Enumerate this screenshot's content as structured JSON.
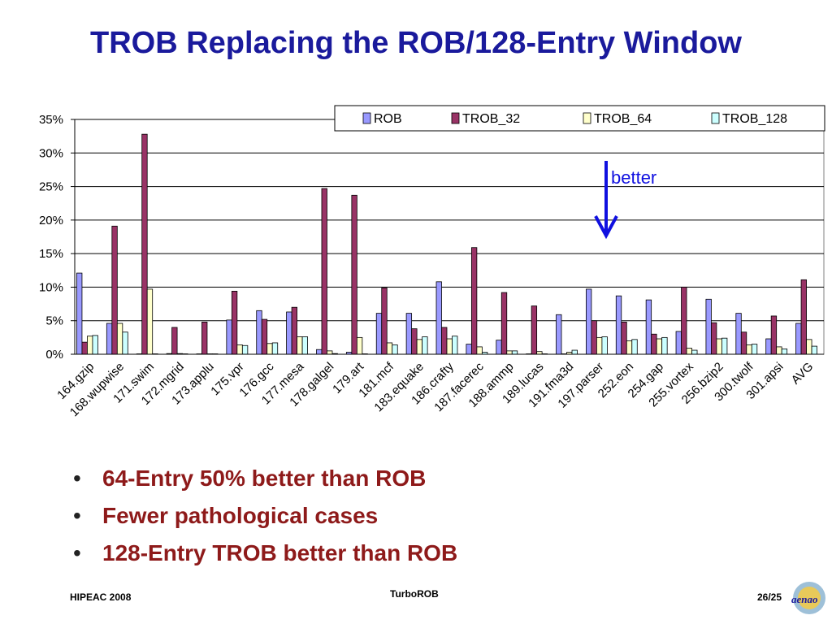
{
  "slide": {
    "title": "TROB Replacing the ROB/128-Entry Window",
    "bullets": [
      "64-Entry 50% better than ROB",
      "Fewer pathological cases",
      "128-Entry TROB better than ROB"
    ],
    "footer_left": "HIPEAC 2008",
    "footer_center": "TurboROB",
    "footer_right": "26/25",
    "logo_text": "aenao"
  },
  "annotation": {
    "text": "better",
    "color": "#1010e0"
  },
  "chart_data": {
    "type": "bar",
    "title": "",
    "xlabel": "",
    "ylabel": "",
    "ylim": [
      0,
      35
    ],
    "yticks": [
      "0%",
      "5%",
      "10%",
      "15%",
      "20%",
      "25%",
      "30%",
      "35%"
    ],
    "grid": true,
    "legend_position": "top-right",
    "categories": [
      "164.gzip",
      "168.wupwise",
      "171.swim",
      "172.mgrid",
      "173.applu",
      "175.vpr",
      "176.gcc",
      "177.mesa",
      "178.galgel",
      "179.art",
      "181.mcf",
      "183.equake",
      "186.crafty",
      "187.facerec",
      "188.ammp",
      "189.lucas",
      "191.fma3d",
      "197.parser",
      "252.eon",
      "254.gap",
      "255.vortex",
      "256.bzip2",
      "300.twolf",
      "301.apsi",
      "AVG"
    ],
    "series": [
      {
        "name": "ROB",
        "color": "#9999ff",
        "values": [
          12.1,
          4.6,
          0,
          0.1,
          0,
          5.1,
          6.5,
          6.3,
          0.7,
          0.3,
          6.1,
          6.1,
          10.8,
          1.5,
          2.1,
          0,
          5.9,
          9.7,
          8.7,
          8.1,
          3.4,
          8.2,
          6.1,
          2.3,
          4.6
        ]
      },
      {
        "name": "TROB_32",
        "color": "#993366",
        "values": [
          1.8,
          19.1,
          32.8,
          4.0,
          4.8,
          9.4,
          5.2,
          7.0,
          24.7,
          23.7,
          9.9,
          3.8,
          4.0,
          15.9,
          9.2,
          7.2,
          0,
          5.0,
          4.8,
          3.0,
          10.0,
          4.7,
          3.3,
          5.7,
          11.1
        ]
      },
      {
        "name": "TROB_64",
        "color": "#ffffcc",
        "values": [
          2.7,
          4.6,
          9.7,
          0.1,
          0,
          1.4,
          1.6,
          2.6,
          0.5,
          2.5,
          1.7,
          2.2,
          2.3,
          1.1,
          0.5,
          0.4,
          0.3,
          2.5,
          2.0,
          2.3,
          0.9,
          2.3,
          1.4,
          1.1,
          2.2
        ]
      },
      {
        "name": "TROB_128",
        "color": "#ccffff",
        "values": [
          2.8,
          3.3,
          0,
          0,
          0,
          1.3,
          1.7,
          2.6,
          0.1,
          0,
          1.4,
          2.6,
          2.7,
          0.3,
          0.5,
          0,
          0.6,
          2.6,
          2.2,
          2.5,
          0.6,
          2.4,
          1.5,
          0.8,
          1.2
        ]
      }
    ]
  }
}
